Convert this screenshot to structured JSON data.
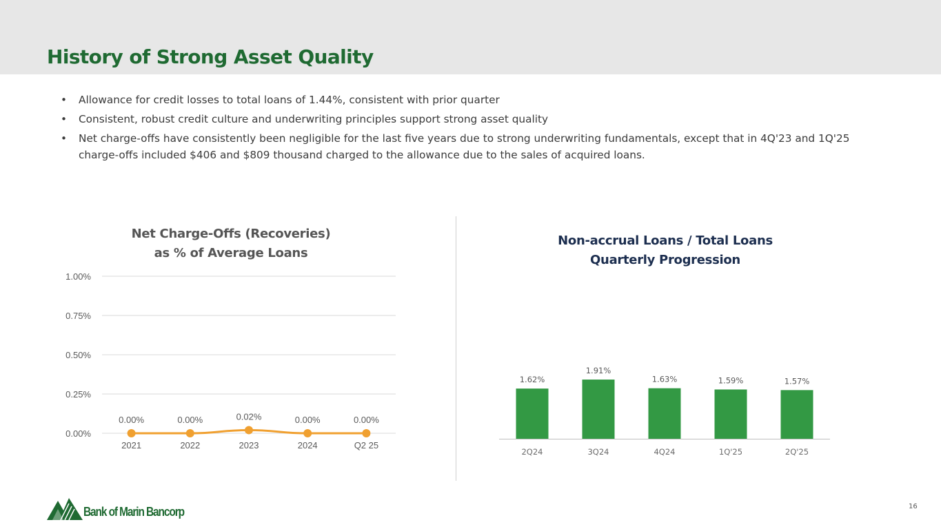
{
  "header": {
    "title": "History of Strong Asset Quality"
  },
  "bullets": [
    "Allowance for credit losses to total loans of 1.44%, consistent with prior quarter",
    "Consistent, robust credit culture and underwriting principles support strong asset quality",
    "Net charge-offs have consistently been negligible for the last five years due to strong underwriting fundamentals, except that in 4Q'23 and 1Q'25 charge-offs included $406 and $809 thousand charged to the allowance due to the sales of acquired loans."
  ],
  "chart_data": [
    {
      "type": "line",
      "title_lines": [
        "Net Charge-Offs (Recoveries)",
        "as % of Average Loans"
      ],
      "categories": [
        "2021",
        "2022",
        "2023",
        "2024",
        "Q2 25"
      ],
      "values": [
        0.0,
        0.0,
        0.02,
        0.0,
        0.0
      ],
      "data_labels": [
        "0.00%",
        "0.00%",
        "0.02%",
        "0.00%",
        "0.00%"
      ],
      "ylim": [
        0,
        1.0
      ],
      "yticks": [
        0.0,
        0.25,
        0.5,
        0.75,
        1.0
      ],
      "ytick_labels": [
        "0.00%",
        "0.25%",
        "0.50%",
        "0.75%",
        "1.00%"
      ],
      "grid": true,
      "color": "#f0a030"
    },
    {
      "type": "bar",
      "title_lines": [
        "Non-accrual Loans / Total Loans",
        "Quarterly Progression"
      ],
      "categories": [
        "2Q24",
        "3Q24",
        "4Q24",
        "1Q'25",
        "2Q'25"
      ],
      "values": [
        1.62,
        1.91,
        1.63,
        1.59,
        1.57
      ],
      "data_labels": [
        "1.62%",
        "1.91%",
        "1.63%",
        "1.59%",
        "1.57%"
      ],
      "grid": false,
      "color": "#339944"
    }
  ],
  "footer": {
    "logo_text": "Bank of Marin Bancorp",
    "logo_icon": "mountain-trees-logo",
    "page_number": "16"
  },
  "colors": {
    "title_green": "#1f6a32",
    "header_bg": "#e7e7e7",
    "right_title_navy": "#1c2e4f"
  }
}
